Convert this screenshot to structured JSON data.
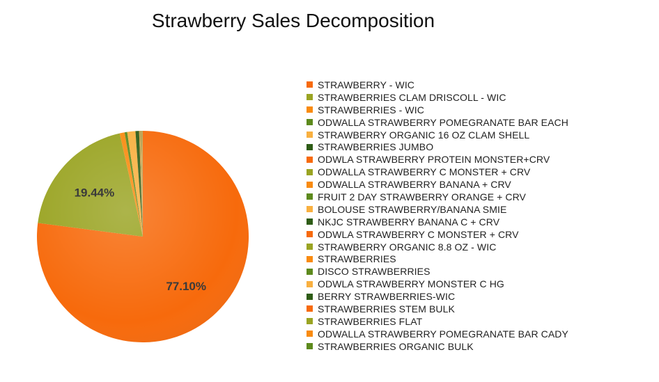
{
  "chart_data": {
    "type": "pie",
    "title": "Strawberry Sales Decomposition",
    "legend_position": "right",
    "colors": [
      "#f76a0c",
      "#9aa423",
      "#f98b10",
      "#5d8a1d",
      "#f9b040",
      "#2e5c16"
    ],
    "slices": [
      {
        "label": "STRAWBERRY - WIC",
        "value": 77.1,
        "data_label": "77.10%"
      },
      {
        "label": "STRAWBERRIES CLAM DRISCOLL - WIC",
        "value": 19.44,
        "data_label": "19.44%"
      },
      {
        "label": "STRAWBERRIES - WIC",
        "value": 0.75
      },
      {
        "label": "ODWALLA STRAWBERRY POMEGRANATE BAR EACH",
        "value": 0.4
      },
      {
        "label": "STRAWBERRY ORGANIC 16 OZ CLAM SHELL",
        "value": 1.25
      },
      {
        "label": "STRAWBERRIES JUMBO",
        "value": 0.55
      },
      {
        "label": "ODWLA STRAWBERRY PROTEIN MONSTER+CRV",
        "value": 0.04
      },
      {
        "label": "ODWALLA STRAWBERRY C MONSTER + CRV",
        "value": 0.04
      },
      {
        "label": "ODWALLA STRAWBERRY BANANA + CRV",
        "value": 0.04
      },
      {
        "label": "FRUIT 2 DAY STRAWBERRY ORANGE + CRV",
        "value": 0.04
      },
      {
        "label": "BOLOUSE STRAWBERRY/BANANA SMIE",
        "value": 0.04
      },
      {
        "label": "NKJC STRAWBERRY BANANA C + CRV",
        "value": 0.04
      },
      {
        "label": "ODWLA STRAWBERRY C MONSTER + CRV",
        "value": 0.04
      },
      {
        "label": "STRAWBERRY ORGANIC 8.8 OZ - WIC",
        "value": 0.04
      },
      {
        "label": "STRAWBERRIES",
        "value": 0.04
      },
      {
        "label": "DISCO STRAWBERRIES",
        "value": 0.03
      },
      {
        "label": "ODWLA STRAWBERRY MONSTER C HG",
        "value": 0.03
      },
      {
        "label": "BERRY STRAWBERRIES-WIC",
        "value": 0.03
      },
      {
        "label": "STRAWBERRIES STEM BULK",
        "value": 0.03
      },
      {
        "label": "STRAWBERRIES FLAT",
        "value": 0.03
      },
      {
        "label": "ODWALLA STRAWBERRY POMEGRANATE BAR CADY",
        "value": 0.03
      },
      {
        "label": "STRAWBERRIES ORGANIC BULK",
        "value": 0.02
      }
    ]
  }
}
